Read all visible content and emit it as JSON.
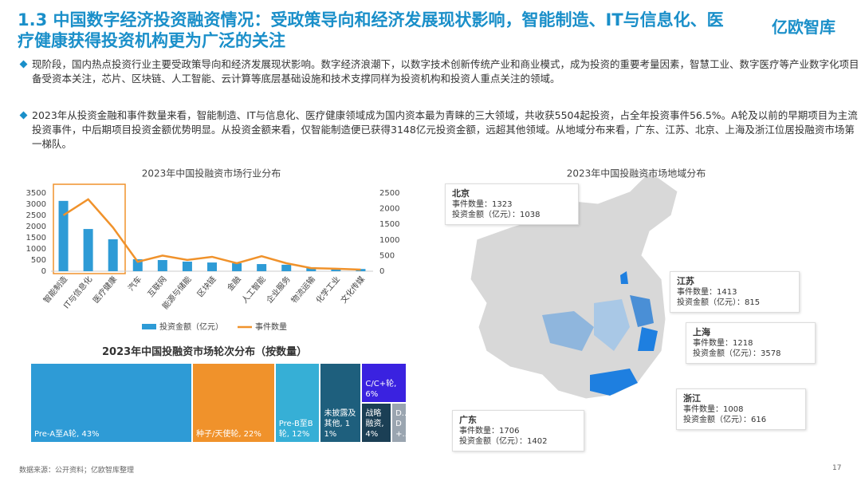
{
  "header": {
    "title": "1.3 中国数字经济投资融资情况：受政策导向和经济发展现状影响，智能制造、IT与信息化、医疗健康获得投资机构更为广泛的关注",
    "logo": "亿欧智库"
  },
  "bullets": [
    "现阶段，国内热点投资行业主要受政策导向和经济发展现状影响。数字经济浪潮下，以数字技术创新传统产业和商业模式，成为投资的重要考量因素，智慧工业、数字医疗等产业数字化项目备受资本关注，芯片、区块链、人工智能、云计算等底层基础设施和技术支撑同样为投资机构和投资人重点关注的领域。",
    "2023年从投资金融和事件数量来看，智能制造、IT与信息化、医疗健康领域成为国内资本最为青睐的三大领域，共收获5504起投资，占全年投资事件56.5%。A轮及以前的早期项目为主流投资事件，中后期项目投资金额优势明显。从投资金额来看，仅智能制造便已获得3148亿元投资金额，远超其他领域。从地域分布来看，广东、江苏、北京、上海及浙江位居投融资市场第一梯队。"
  ],
  "chart_data": [
    {
      "type": "bar-line",
      "title": "2023年中国投融资市场行业分布",
      "categories": [
        "智能制造",
        "IT与信息化",
        "医疗健康",
        "汽车",
        "互联网",
        "能源与储能",
        "区块链",
        "金融",
        "人工智能",
        "企业服务",
        "物流运输",
        "化学工业",
        "文化传媒"
      ],
      "series": [
        {
          "name": "投资金额（亿元）",
          "type": "bar",
          "color": "#2e9bd6",
          "values": [
            3148,
            1890,
            1430,
            535,
            500,
            430,
            390,
            360,
            320,
            290,
            180,
            140,
            100
          ]
        },
        {
          "name": "事件数量",
          "type": "line",
          "axis": "y2",
          "color": "#f0922b",
          "values": [
            1790,
            2300,
            1400,
            300,
            500,
            360,
            460,
            255,
            480,
            255,
            100,
            80,
            50
          ]
        }
      ],
      "ylim": [
        0,
        3500
      ],
      "yticks": [
        0,
        500,
        1000,
        1500,
        2000,
        2500,
        3000,
        3500
      ],
      "y2lim": [
        0,
        2500
      ],
      "y2ticks": [
        0,
        500,
        1000,
        1500,
        2000,
        2500
      ],
      "legend": "bottom"
    },
    {
      "type": "treemap",
      "title": "2023年中国投融资市场轮次分布（按数量）",
      "categories": [
        "Pre-A至A轮",
        "种子/天使轮",
        "Pre-B至B轮",
        "未披露及其他",
        "C/C+轮",
        "战略融资",
        "D/D+"
      ],
      "values": [
        43,
        22,
        12,
        11,
        6,
        4,
        2
      ],
      "value_labels": [
        "Pre-A至A轮, 43%",
        "种子/天使轮, 22%",
        "Pre-B至B轮, 12%",
        "未披露及其他, 11%",
        "C/C+轮, 6%",
        "战略融资, 4%",
        "D... D+..."
      ],
      "colors": [
        "#2e9bd6",
        "#f0922b",
        "#36afd6",
        "#1e5f7d",
        "#3a22e0",
        "#1b3f55",
        "#9aa5b0"
      ]
    }
  ],
  "map": {
    "title": "2023年中国投融资市场地域分布",
    "regions": [
      {
        "name": "北京",
        "events": "事件数量：1323",
        "amount": "投资金额（亿元）：1038"
      },
      {
        "name": "江苏",
        "events": "事件数量：1413",
        "amount": "投资金额（亿元）：815"
      },
      {
        "name": "上海",
        "events": "事件数量：1218",
        "amount": "投资金额（亿元）：3578"
      },
      {
        "name": "浙江",
        "events": "事件数量：1008",
        "amount": "投资金额（亿元）：616"
      },
      {
        "name": "广东",
        "events": "事件数量：1706",
        "amount": "投资金额（亿元）：1402"
      }
    ]
  },
  "footer": {
    "source": "数据来源：公开资料；亿欧智库整理",
    "page": "17"
  }
}
